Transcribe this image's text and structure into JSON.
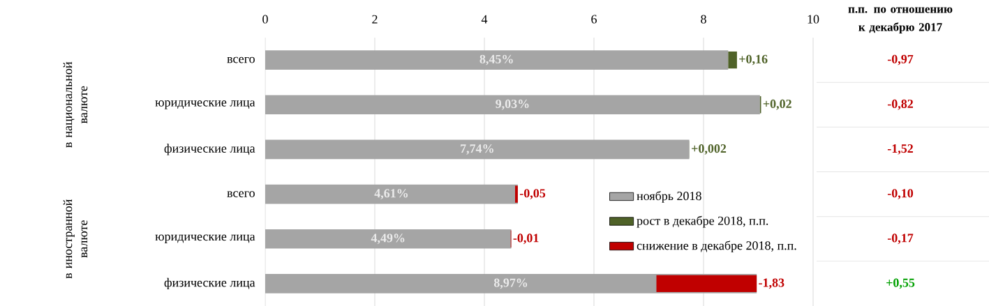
{
  "chart_data": [
    {
      "type": "bar",
      "orientation": "horizontal",
      "categories": [
        "всего",
        "юридические лица",
        "физические лица",
        "всего",
        "юридические лица",
        "физические лица"
      ],
      "series": [
        {
          "name": "ноябрь 2018",
          "color": "#a5a5a5",
          "values": [
            8.45,
            9.03,
            7.74,
            4.61,
            4.49,
            8.97
          ],
          "value_labels": [
            "8,45%",
            "9,03%",
            "7,74%",
            "4,61%",
            "4,49%",
            "8,97%"
          ]
        },
        {
          "name": "рост в декабре 2018, п.п.",
          "color": "#4f6228",
          "base": [
            8.45,
            9.03,
            7.74,
            null,
            null,
            null
          ],
          "values": [
            0.16,
            0.02,
            0.002,
            null,
            null,
            null
          ],
          "value_labels": [
            "+0,16",
            "+0,02",
            "+0,002",
            null,
            null,
            null
          ]
        },
        {
          "name": "снижение в декабре 2018, п.п.",
          "color": "#c00000",
          "base": [
            null,
            null,
            null,
            4.61,
            4.49,
            8.97
          ],
          "values": [
            null,
            null,
            null,
            -0.05,
            -0.01,
            -1.83
          ],
          "value_labels": [
            null,
            null,
            null,
            "-0,05",
            "-0,01",
            "-1,83"
          ]
        }
      ],
      "xlim": [
        0,
        10
      ],
      "xticks": [
        0,
        2,
        4,
        6,
        8,
        10
      ],
      "grid": "x",
      "legend": "bottom right",
      "annotations": [
        "в национальной валюте",
        "в иностранной валюте"
      ]
    },
    {
      "type": "other",
      "title": "п.п. по отношению к декабрю 2017",
      "value_labels": [
        "-0,97",
        "-0,82",
        "-1,52",
        "-0,10",
        "-0,17",
        "+0,55"
      ],
      "colors": [
        "#c00000",
        "#c00000",
        "#c00000",
        "#c00000",
        "#c00000",
        "#00a000"
      ]
    }
  ]
}
